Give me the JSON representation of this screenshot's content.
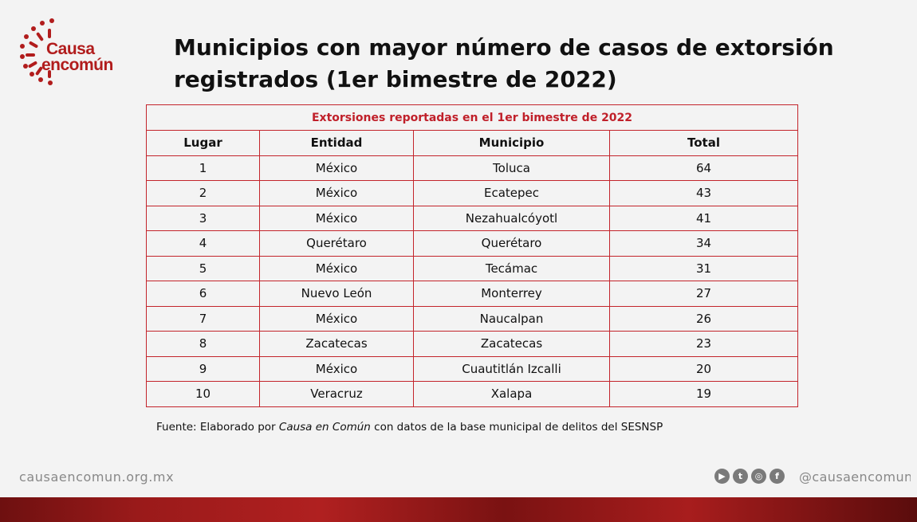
{
  "logo": {
    "line1": "Causa",
    "line2": "encomún"
  },
  "title": "Municipios con mayor número de casos de extorsión registrados (1er bimestre de 2022)",
  "table": {
    "caption": "Extorsiones reportadas en el 1er bimestre de 2022",
    "headers": [
      "Lugar",
      "Entidad",
      "Municipio",
      "Total"
    ],
    "rows": [
      [
        "1",
        "México",
        "Toluca",
        "64"
      ],
      [
        "2",
        "México",
        "Ecatepec",
        "43"
      ],
      [
        "3",
        "México",
        "Nezahualcóyotl",
        "41"
      ],
      [
        "4",
        "Querétaro",
        "Querétaro",
        "34"
      ],
      [
        "5",
        "México",
        "Tecámac",
        "31"
      ],
      [
        "6",
        "Nuevo León",
        "Monterrey",
        "27"
      ],
      [
        "7",
        "México",
        "Naucalpan",
        "26"
      ],
      [
        "8",
        "Zacatecas",
        "Zacatecas",
        "23"
      ],
      [
        "9",
        "México",
        "Cuautitlán Izcalli",
        "20"
      ],
      [
        "10",
        "Veracruz",
        "Xalapa",
        "19"
      ]
    ]
  },
  "source": {
    "prefix": "Fuente: Elaborado por ",
    "org": "Causa en Común",
    "suffix": " con datos de la base municipal de delitos del SESNSP"
  },
  "footer": {
    "website": "causaencomun.org.mx",
    "handle": "@causaencomun",
    "social_icons": [
      "youtube-icon",
      "twitter-icon",
      "instagram-icon",
      "facebook-icon"
    ]
  },
  "colors": {
    "accent": "#c3242b",
    "brand": "#b11c1c"
  }
}
